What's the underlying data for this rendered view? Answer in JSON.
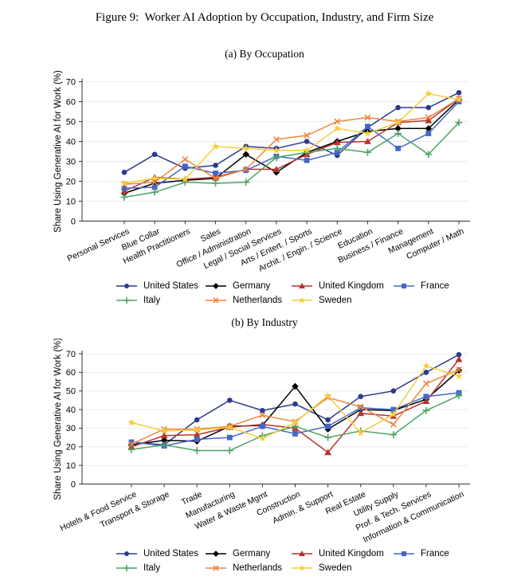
{
  "figure_title": "Figure 9:  Worker AI Adoption by Occupation, Industry, and Firm Size",
  "ylabel": "Share Using Generative AI for Work (%)",
  "legend": {
    "items": [
      "United States",
      "Germany",
      "United Kingdom",
      "France",
      "Italy",
      "Netherlands",
      "Sweden"
    ]
  },
  "chart_data": [
    {
      "type": "line",
      "title": "(a) By Occupation",
      "ylabel": "Share Using Generative AI for Work (%)",
      "ylim": [
        0,
        70
      ],
      "yticks": [
        0,
        10,
        20,
        30,
        40,
        50,
        60,
        70
      ],
      "grid": true,
      "legend_position": "bottom",
      "categories": [
        "Personal Services",
        "Blue Collar",
        "Health Practitioners",
        "Sales",
        "Office / Administration",
        "Legal / Social Services",
        "Arts / Entert. / Sports",
        "Archit. / Engin. / Science",
        "Education",
        "Business / Finance",
        "Management",
        "Computer / Math"
      ],
      "series": [
        {
          "name": "United States",
          "color": "#2b3a8c",
          "marker": "circle",
          "values": [
            24.5,
            33.5,
            26.5,
            28,
            37.5,
            36.5,
            40,
            33,
            47,
            57,
            57,
            64.5
          ]
        },
        {
          "name": "Germany",
          "color": "#000000",
          "marker": "diamond",
          "values": [
            14,
            19,
            20.5,
            21.5,
            33.5,
            24.5,
            34.5,
            40,
            45,
            46.5,
            46.5,
            61
          ]
        },
        {
          "name": "United Kingdom",
          "color": "#b8332e",
          "marker": "triangle",
          "values": [
            15,
            22,
            21,
            22,
            26,
            26,
            33.5,
            39.5,
            40,
            49.5,
            50.5,
            61.5
          ]
        },
        {
          "name": "France",
          "color": "#4566c8",
          "marker": "square",
          "values": [
            16.5,
            17,
            27.5,
            24,
            25.5,
            32.5,
            30.5,
            34.5,
            47.5,
            36.5,
            44,
            60
          ]
        },
        {
          "name": "Italy",
          "color": "#4fa464",
          "marker": "plus",
          "values": [
            12,
            14.5,
            19.5,
            19,
            19.5,
            32,
            34.5,
            36.5,
            34.5,
            44,
            33.5,
            49.5
          ]
        },
        {
          "name": "Netherlands",
          "color": "#ee8640",
          "marker": "x",
          "values": [
            18.5,
            19.5,
            31,
            21.5,
            26,
            41,
            43,
            50,
            52,
            50,
            52,
            61.5
          ]
        },
        {
          "name": "Sweden",
          "color": "#f4cd3c",
          "marker": "star",
          "values": [
            19,
            21.5,
            21,
            37.5,
            36.5,
            35.5,
            35.5,
            46.5,
            44,
            49.5,
            64,
            61
          ]
        }
      ]
    },
    {
      "type": "line",
      "title": "(b) By Industry",
      "ylabel": "Share Using Generative AI for Work (%)",
      "ylim": [
        0,
        70
      ],
      "yticks": [
        0,
        10,
        20,
        30,
        40,
        50,
        60,
        70
      ],
      "grid": true,
      "legend_position": "bottom",
      "categories": [
        "Hotels & Food Service",
        "Transport & Storage",
        "Trade",
        "Manufacturing",
        "Water & Waste Mgmt",
        "Construction",
        "Admin. & Support",
        "Real Estate",
        "Utility Supply",
        "Prof. & Tech. Services",
        "Information & Communication"
      ],
      "series": [
        {
          "name": "United States",
          "color": "#2b3a8c",
          "marker": "circle",
          "values": [
            22.5,
            21,
            34.5,
            45,
            39.5,
            43,
            34.5,
            47,
            50,
            60,
            69.5
          ]
        },
        {
          "name": "Germany",
          "color": "#000000",
          "marker": "diamond",
          "values": [
            21,
            23.5,
            23,
            31,
            31.5,
            52.5,
            29.5,
            40,
            39.5,
            45.5,
            61
          ]
        },
        {
          "name": "United Kingdom",
          "color": "#b8332e",
          "marker": "triangle",
          "values": [
            20,
            26,
            26.5,
            30.5,
            32,
            30,
            17,
            38,
            36.5,
            44.5,
            67
          ]
        },
        {
          "name": "France",
          "color": "#4566c8",
          "marker": "square",
          "values": [
            22.5,
            20.5,
            24,
            25,
            31,
            27,
            31,
            41,
            40,
            47,
            49
          ]
        },
        {
          "name": "Italy",
          "color": "#4fa464",
          "marker": "plus",
          "values": [
            18.5,
            21,
            18,
            18,
            26,
            31,
            25,
            28.5,
            26.5,
            39.5,
            47.5
          ]
        },
        {
          "name": "Netherlands",
          "color": "#ee8640",
          "marker": "x",
          "values": [
            21.5,
            29.5,
            29.5,
            31,
            37,
            33.5,
            46.5,
            41.5,
            32,
            54,
            61.5
          ]
        },
        {
          "name": "Sweden",
          "color": "#f4cd3c",
          "marker": "star",
          "values": [
            33,
            28.5,
            29,
            30.5,
            24.5,
            33,
            47.5,
            27.5,
            37.5,
            63.5,
            58
          ]
        }
      ]
    }
  ]
}
